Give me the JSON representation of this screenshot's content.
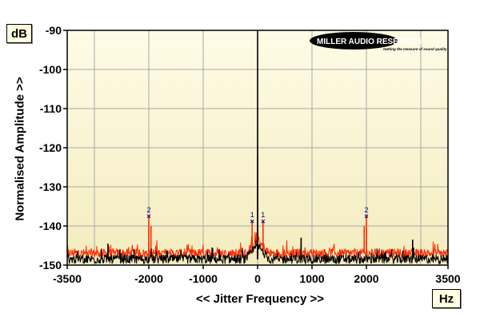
{
  "chart_data": {
    "type": "line",
    "xlabel": "<< Jitter Frequency >>",
    "ylabel": "Normalised Amplitude >>",
    "x_unit": "Hz",
    "y_unit": "dB",
    "xlim": [
      -3500,
      3500
    ],
    "ylim": [
      -150,
      -90
    ],
    "x_ticks": [
      -3500,
      -2000,
      -1000,
      0,
      1000,
      2000,
      3500
    ],
    "y_ticks": [
      -90,
      -100,
      -110,
      -120,
      -130,
      -140,
      -150
    ],
    "x_tick_labels": [
      "-3500",
      "-2000",
      "-1000",
      "0",
      "1000",
      "2000",
      "3500"
    ],
    "y_tick_labels": [
      "-90",
      "-100",
      "-110",
      "-120",
      "-130",
      "-140",
      "-150"
    ],
    "grid": true,
    "series": [
      {
        "color": "#ff2a00",
        "noise_floor": -147
      },
      {
        "color": "#000000",
        "noise_floor": -148.5
      }
    ],
    "peaks": [
      {
        "x": 0,
        "y": -90,
        "series": 1
      },
      {
        "x": 0,
        "y": -122,
        "series": 0
      },
      {
        "x": -2000,
        "y": -137.5,
        "series": 0
      },
      {
        "x": 2000,
        "y": -137.5,
        "series": 0
      },
      {
        "x": -1960,
        "y": -140,
        "series": 0
      },
      {
        "x": 1960,
        "y": -140,
        "series": 0
      },
      {
        "x": -100,
        "y": -138.8,
        "series": 0
      },
      {
        "x": 100,
        "y": -138.8,
        "series": 0
      },
      {
        "x": 800,
        "y": -143,
        "series": 1
      },
      {
        "x": 2850,
        "y": -143.5,
        "series": 1
      },
      {
        "x": -2750,
        "y": -144.5,
        "series": 1
      }
    ],
    "markers": [
      {
        "label": "2",
        "x": -2000,
        "y": -137.5
      },
      {
        "label": "1",
        "x": -100,
        "y": -138.8
      },
      {
        "label": "1",
        "x": 100,
        "y": -138.8
      },
      {
        "label": "2",
        "x": 2000,
        "y": -137.5
      }
    ]
  },
  "logo": {
    "text": "MILLER AUDIO RESEARCH",
    "tagline": "Getting the measure of sound quality"
  }
}
